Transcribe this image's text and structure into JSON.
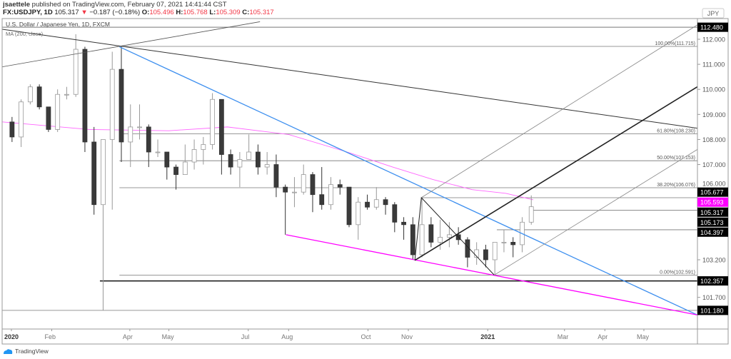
{
  "header": {
    "author": "jsaettele",
    "published": "published on TradingView.com, February 07, 2021 14:41:44 CST",
    "symbol": "FX:USDJPY, 1D",
    "last": "105.317",
    "change": "−0.187 (−0.18%)",
    "o_label": "O:",
    "o": "105.496",
    "h_label": "H:",
    "h": "105.768",
    "l_label": "L:",
    "l": "105.309",
    "c_label": "C:",
    "c": "105.317"
  },
  "legend": {
    "title": "U.S. Dollar / Japanese Yen, 1D, FXCM",
    "ma": "MA (200, close)"
  },
  "footer": {
    "brand": "TradingView"
  },
  "colors": {
    "up": "#ffffff",
    "down": "#3a3a3a",
    "ma": "#ff66ff",
    "blue_trend": "#3d8fef",
    "magenta_trend": "#ff00ff",
    "badge": "#000000",
    "ma_badge": "#ff00ff"
  },
  "chart_data": {
    "type": "candlestick",
    "note_interval": "weekly approximation of daily candles",
    "currency": "JPY",
    "y_axis": {
      "ticks": [
        "112.000",
        "111.000",
        "110.000",
        "109.000",
        "108.000",
        "107.000",
        "106.000",
        "103.200",
        "101.700"
      ]
    },
    "x_axis": {
      "ticks": [
        {
          "label": "2020",
          "date": "2020-01-01",
          "bold": true
        },
        {
          "label": "Feb",
          "date": "2020-02-01"
        },
        {
          "label": "Apr",
          "date": "2020-04-01"
        },
        {
          "label": "May",
          "date": "2020-05-01"
        },
        {
          "label": "Jul",
          "date": "2020-07-01"
        },
        {
          "label": "Aug",
          "date": "2020-08-01"
        },
        {
          "label": "Oct",
          "date": "2020-10-01"
        },
        {
          "label": "Nov",
          "date": "2020-11-01"
        },
        {
          "label": "2021",
          "date": "2021-01-01",
          "bold": true
        },
        {
          "label": "Mar",
          "date": "2021-03-01"
        },
        {
          "label": "Apr",
          "date": "2021-04-01"
        },
        {
          "label": "May",
          "date": "2021-05-01"
        }
      ]
    },
    "candles": [
      [
        "2019-12-30",
        108.7,
        108.9,
        107.9,
        108.1
      ],
      [
        "2020-01-06",
        108.1,
        109.6,
        107.7,
        109.5
      ],
      [
        "2020-01-13",
        109.5,
        110.2,
        109.4,
        110.1
      ],
      [
        "2020-01-20",
        110.1,
        110.2,
        109.2,
        109.3
      ],
      [
        "2020-01-27",
        109.3,
        109.3,
        108.3,
        108.4
      ],
      [
        "2020-02-03",
        108.4,
        110.0,
        108.3,
        109.8
      ],
      [
        "2020-02-10",
        109.8,
        110.1,
        109.6,
        109.8
      ],
      [
        "2020-02-17",
        109.8,
        112.2,
        109.7,
        111.6
      ],
      [
        "2020-02-24",
        111.6,
        111.7,
        107.5,
        107.9
      ],
      [
        "2020-03-02",
        107.9,
        108.5,
        105.0,
        105.4
      ],
      [
        "2020-03-09",
        105.4,
        108.0,
        101.18,
        108.0
      ],
      [
        "2020-03-16",
        108.0,
        111.5,
        105.2,
        110.8
      ],
      [
        "2020-03-23",
        110.8,
        111.7,
        107.1,
        107.9
      ],
      [
        "2020-03-30",
        107.9,
        109.4,
        106.9,
        108.5
      ],
      [
        "2020-04-06",
        108.5,
        109.4,
        108.0,
        108.5
      ],
      [
        "2020-04-13",
        108.5,
        108.6,
        106.9,
        107.5
      ],
      [
        "2020-04-20",
        107.5,
        108.0,
        107.3,
        107.5
      ],
      [
        "2020-04-27",
        107.5,
        107.5,
        106.4,
        106.9
      ],
      [
        "2020-05-04",
        106.9,
        107.0,
        106.0,
        106.6
      ],
      [
        "2020-05-11",
        106.6,
        107.8,
        106.6,
        107.1
      ],
      [
        "2020-05-18",
        107.1,
        108.0,
        106.8,
        107.6
      ],
      [
        "2020-05-25",
        107.6,
        108.1,
        107.0,
        107.8
      ],
      [
        "2020-06-01",
        107.8,
        109.85,
        107.6,
        109.6
      ],
      [
        "2020-06-08",
        109.6,
        109.6,
        106.6,
        107.4
      ],
      [
        "2020-06-15",
        107.4,
        107.6,
        106.6,
        106.9
      ],
      [
        "2020-06-22",
        106.9,
        107.5,
        106.1,
        107.2
      ],
      [
        "2020-06-29",
        107.2,
        108.2,
        107.2,
        107.5
      ],
      [
        "2020-07-06",
        107.5,
        107.8,
        106.6,
        106.9
      ],
      [
        "2020-07-13",
        106.9,
        107.5,
        106.6,
        107.0
      ],
      [
        "2020-07-20",
        107.0,
        107.4,
        105.7,
        106.1
      ],
      [
        "2020-07-27",
        106.1,
        106.2,
        104.2,
        105.9
      ],
      [
        "2020-08-03",
        105.9,
        106.5,
        105.3,
        105.9
      ],
      [
        "2020-08-10",
        105.9,
        107.0,
        105.8,
        106.6
      ],
      [
        "2020-08-17",
        106.6,
        106.7,
        105.1,
        105.8
      ],
      [
        "2020-08-24",
        105.8,
        106.9,
        105.2,
        105.4
      ],
      [
        "2020-08-31",
        105.4,
        106.5,
        105.2,
        106.2
      ],
      [
        "2020-09-07",
        106.2,
        106.4,
        105.8,
        106.1
      ],
      [
        "2020-09-14",
        106.1,
        106.1,
        104.5,
        104.6
      ],
      [
        "2020-09-21",
        104.6,
        105.7,
        104.0,
        105.5
      ],
      [
        "2020-09-28",
        105.5,
        105.8,
        105.2,
        105.3
      ],
      [
        "2020-10-05",
        105.3,
        106.1,
        105.2,
        105.6
      ],
      [
        "2020-10-12",
        105.6,
        105.7,
        105.0,
        105.4
      ],
      [
        "2020-10-19",
        105.4,
        105.5,
        104.3,
        104.7
      ],
      [
        "2020-10-26",
        104.7,
        104.9,
        104.0,
        104.6
      ],
      [
        "2020-11-02",
        104.6,
        104.9,
        103.2,
        103.4
      ],
      [
        "2020-11-09",
        103.4,
        105.7,
        103.3,
        104.6
      ],
      [
        "2020-11-16",
        104.6,
        104.9,
        103.7,
        103.9
      ],
      [
        "2020-11-23",
        103.9,
        104.8,
        103.6,
        104.1
      ],
      [
        "2020-11-30",
        104.1,
        104.7,
        103.7,
        104.2
      ],
      [
        "2020-12-07",
        104.2,
        104.5,
        103.8,
        104.0
      ],
      [
        "2020-12-14",
        104.0,
        104.1,
        102.9,
        103.3
      ],
      [
        "2020-12-21",
        103.3,
        103.9,
        103.0,
        103.6
      ],
      [
        "2020-12-28",
        103.6,
        103.8,
        102.9,
        103.2
      ],
      [
        "2021-01-04",
        103.2,
        103.9,
        102.59,
        103.9
      ],
      [
        "2021-01-11",
        103.9,
        104.4,
        103.5,
        103.9
      ],
      [
        "2021-01-18",
        103.9,
        104.1,
        103.3,
        103.8
      ],
      [
        "2021-01-25",
        103.8,
        104.9,
        103.5,
        104.7
      ],
      [
        "2021-02-01",
        104.7,
        105.768,
        104.6,
        105.317
      ]
    ],
    "ma200": [
      [
        "2019-12-25",
        108.7
      ],
      [
        "2020-03-01",
        108.4
      ],
      [
        "2020-05-01",
        108.35
      ],
      [
        "2020-06-15",
        108.5
      ],
      [
        "2020-08-01",
        108.2
      ],
      [
        "2020-09-15",
        107.5
      ],
      [
        "2020-10-20",
        106.9
      ],
      [
        "2020-11-20",
        106.4
      ],
      [
        "2020-12-20",
        106.0
      ],
      [
        "2021-01-15",
        105.85
      ],
      [
        "2021-02-05",
        105.593
      ]
    ],
    "trendlines": [
      {
        "color": "#3d8fef",
        "width": 1.3,
        "points": [
          [
            "2020-03-24",
            111.7
          ],
          [
            "2021-06-11",
            101.0
          ]
        ]
      },
      {
        "color": "#ff00ff",
        "width": 1.3,
        "points": [
          [
            "2020-07-30",
            104.2
          ],
          [
            "2021-06-11",
            101.0
          ]
        ]
      },
      {
        "color": "#333333",
        "width": 1,
        "points": [
          [
            "2019-12-25",
            112.4
          ],
          [
            "2021-06-11",
            108.45
          ]
        ]
      },
      {
        "color": "#555555",
        "width": 0.8,
        "points": [
          [
            "2019-12-25",
            110.9
          ],
          [
            "2020-07-10",
            112.7
          ]
        ]
      },
      {
        "color": "#222222",
        "width": 1.6,
        "points": [
          [
            "2020-11-06",
            103.18
          ],
          [
            "2021-06-11",
            110.1
          ]
        ]
      },
      {
        "color": "#222222",
        "width": 1,
        "points": [
          [
            "2020-11-06",
            103.18
          ],
          [
            "2020-11-11",
            105.68
          ],
          [
            "2021-01-06",
            102.59
          ]
        ]
      },
      {
        "color": "#888888",
        "width": 0.8,
        "points": [
          [
            "2020-11-11",
            105.68
          ],
          [
            "2021-06-11",
            112.57
          ]
        ]
      },
      {
        "color": "#888888",
        "width": 0.8,
        "points": [
          [
            "2021-01-06",
            102.59
          ],
          [
            "2021-06-11",
            107.6
          ]
        ]
      }
    ],
    "levels": [
      {
        "price": 112.48,
        "from": "2019-12-25",
        "width": 1
      },
      {
        "price": 111.715,
        "from": "2020-03-24",
        "width": 0.8,
        "label": "100.00%(111.715)"
      },
      {
        "price": 108.23,
        "from": "2020-03-24",
        "width": 0.8,
        "label": "61.80%(108.230)"
      },
      {
        "price": 107.153,
        "from": "2020-03-24",
        "width": 0.8,
        "label": "50.00%(107.153)"
      },
      {
        "price": 106.076,
        "from": "2020-03-24",
        "width": 0.8,
        "label": "38.20%(106.076)"
      },
      {
        "price": 105.677,
        "from": "2020-11-11",
        "width": 0.8
      },
      {
        "price": 105.173,
        "from": "2021-02-03",
        "width": 0.8
      },
      {
        "price": 104.397,
        "from": "2021-01-08",
        "width": 0.8
      },
      {
        "price": 102.591,
        "from": "2020-03-24",
        "width": 0.8,
        "label": "0.00%(102.591)"
      },
      {
        "price": 102.357,
        "from": "2020-03-09",
        "width": 1.5
      },
      {
        "price": 101.18,
        "from": "2019-12-25",
        "width": 0.8
      }
    ],
    "badges": [
      {
        "text": "112.480",
        "price": 112.48,
        "color": "#000000"
      },
      {
        "text": "105.677",
        "price": 105.9,
        "color": "#000000"
      },
      {
        "text": "105.593",
        "price": 105.5,
        "color": "#ff00ff"
      },
      {
        "text": "105.317",
        "price": 105.1,
        "color": "#000000"
      },
      {
        "text": "105.173",
        "price": 104.72,
        "color": "#000000"
      },
      {
        "text": "104.397",
        "price": 104.34,
        "color": "#000000"
      },
      {
        "text": "102.357",
        "price": 102.357,
        "color": "#000000"
      },
      {
        "text": "101.180",
        "price": 101.18,
        "color": "#000000"
      }
    ]
  }
}
